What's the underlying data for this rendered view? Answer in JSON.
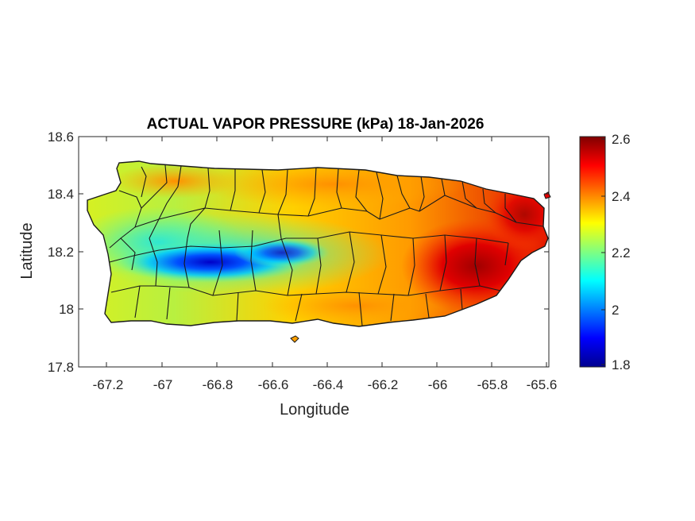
{
  "title": "ACTUAL VAPOR PRESSURE (kPa) 18-Jan-2026",
  "map": {
    "xlabel": "Longitude",
    "ylabel": "Latitude",
    "xlim": [
      -67.3,
      -65.58
    ],
    "ylim": [
      17.8,
      18.6
    ],
    "xticks": [
      "-67.2",
      "-67",
      "-66.8",
      "-66.6",
      "-66.4",
      "-66.2",
      "-66",
      "-65.8",
      "-65.6"
    ],
    "yticks": [
      "18.6",
      "18.4",
      "18.2",
      "18",
      "17.8"
    ],
    "colormap": "jet",
    "colors": {
      "low": "#00008f",
      "mid": "#80ff80",
      "high": "#800000",
      "outline": "#1a1a1a"
    }
  },
  "colorbar": {
    "range": [
      1.8,
      2.6
    ],
    "ticks": [
      "2.6",
      "2.4",
      "2.2",
      "2",
      "1.8"
    ]
  }
}
